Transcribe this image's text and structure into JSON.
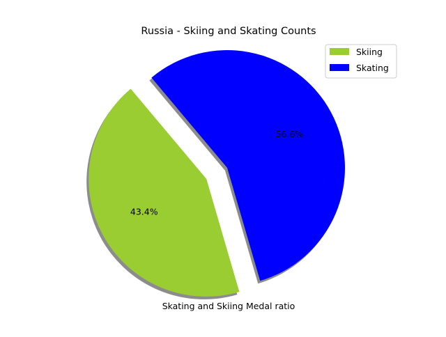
{
  "chart_data": {
    "type": "pie",
    "title": "Russia - Skiing and Skating Counts",
    "xlabel": "Skating and Skiing Medal ratio",
    "ylabel": "",
    "categories": [
      "Skiing",
      "Skating"
    ],
    "values": [
      43.4,
      56.6
    ],
    "value_labels": [
      "43.4%",
      "56.6%"
    ],
    "colors": [
      "#9acd32",
      "#0000ff"
    ],
    "explode": [
      0.2,
      0
    ],
    "shadow": true,
    "start_angle_deg": 130,
    "legend": {
      "position": "top-right",
      "entries": [
        "Skiing",
        "Skating"
      ]
    }
  }
}
